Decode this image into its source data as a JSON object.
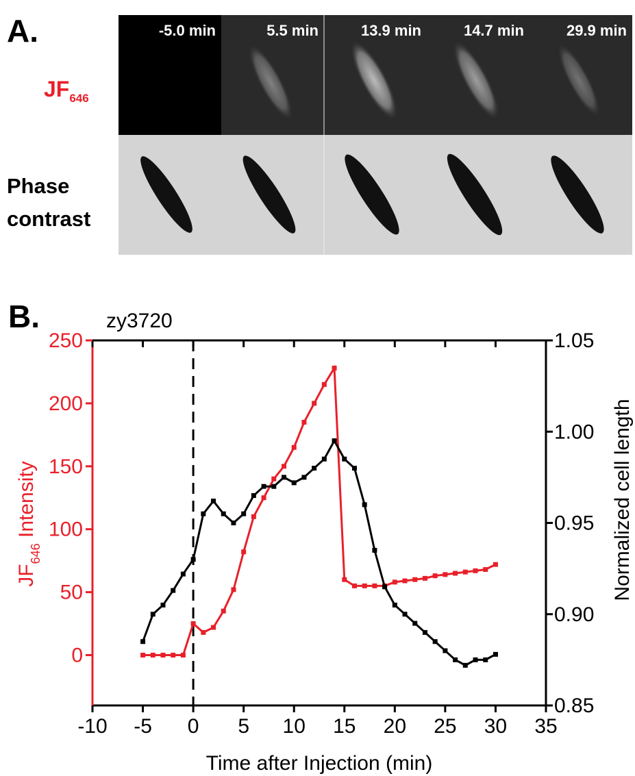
{
  "panel_a": {
    "label": "A.",
    "row_labels": [
      {
        "main": "JF",
        "sub": "646"
      },
      "Phase contrast"
    ],
    "times": [
      "-5.0 min",
      "5.5 min",
      "13.9 min",
      "14.7 min",
      "29.9 min"
    ]
  },
  "chart_data": {
    "type": "line",
    "panel_label": "B.",
    "title": "zy3720",
    "xlabel": "Time after Injection (min)",
    "ylabel": {
      "main": "JF",
      "sub": "646",
      "rest": " Intensity"
    },
    "y2label": "Normalized cell length",
    "x": [
      -5,
      -4,
      -3,
      -2,
      -1,
      0,
      1,
      2,
      3,
      4,
      5,
      6,
      7,
      8,
      9,
      10,
      11,
      12,
      13,
      14,
      15,
      16,
      17,
      18,
      19,
      20,
      21,
      22,
      23,
      24,
      25,
      26,
      27,
      28,
      29,
      30
    ],
    "xlim": [
      -10,
      35
    ],
    "xticks": [
      -10,
      -5,
      0,
      5,
      10,
      15,
      20,
      25,
      30,
      35
    ],
    "ylim": [
      -40,
      250
    ],
    "yticks": [
      0,
      50,
      100,
      150,
      200,
      250
    ],
    "y2lim": [
      0.85,
      1.05
    ],
    "y2ticks": [
      0.85,
      {
        "value": 0.9,
        "label": "0.90"
      },
      0.95,
      {
        "value": 1.0,
        "label": "1.00"
      },
      1.05
    ],
    "vline": 0,
    "series": [
      {
        "color": "#e8202a",
        "values": [
          0,
          0,
          0,
          0,
          0,
          25,
          18,
          22,
          35,
          52,
          82,
          110,
          125,
          140,
          150,
          165,
          185,
          200,
          215,
          228,
          60,
          55,
          55,
          55,
          55,
          58,
          59,
          60,
          61,
          63,
          64,
          65,
          66,
          67,
          68,
          72
        ]
      },
      {
        "color": "#000000",
        "axis": "y2",
        "values": [
          0.885,
          0.9,
          0.905,
          0.913,
          0.922,
          0.93,
          0.955,
          0.962,
          0.955,
          0.95,
          0.955,
          0.965,
          0.97,
          0.97,
          0.975,
          0.972,
          0.975,
          0.98,
          0.985,
          0.995,
          0.985,
          0.98,
          0.96,
          0.935,
          0.915,
          0.905,
          0.9,
          0.895,
          0.89,
          0.885,
          0.88,
          0.875,
          0.872,
          0.875,
          0.875,
          0.878
        ]
      }
    ]
  }
}
